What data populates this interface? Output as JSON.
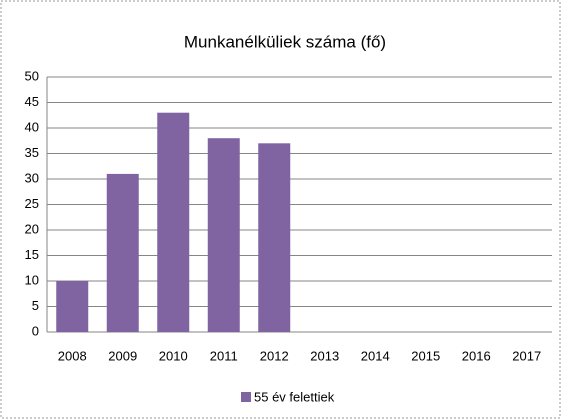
{
  "chart_data": {
    "type": "bar",
    "title": "Munkanélküliek száma (fő)",
    "categories": [
      "2008",
      "2009",
      "2010",
      "2011",
      "2012",
      "2013",
      "2014",
      "2015",
      "2016",
      "2017"
    ],
    "series": [
      {
        "name": "55 év felettiek",
        "color": "#8064a2",
        "values": [
          10,
          31,
          43,
          38,
          37,
          null,
          null,
          null,
          null,
          null
        ]
      }
    ],
    "ylim": [
      0,
      50
    ],
    "yticks": [
      0,
      5,
      10,
      15,
      20,
      25,
      30,
      35,
      40,
      45,
      50
    ],
    "grid": true,
    "legend": "bottom"
  }
}
